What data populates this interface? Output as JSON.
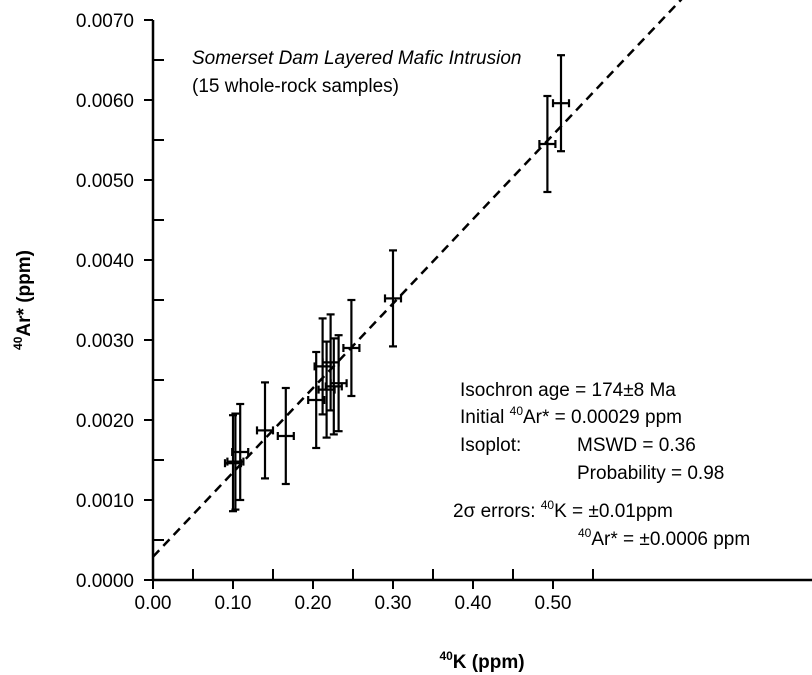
{
  "chart_data": {
    "type": "scatter",
    "title": "Somerset Dam Layered Mafic Intrusion",
    "subtitle": "(15 whole-rock samples)",
    "xlabel": {
      "sup": "40",
      "main": "K (ppm)"
    },
    "ylabel": {
      "sup": "40",
      "main": "Ar* (ppm)"
    },
    "xlim": [
      0,
      0.55
    ],
    "ylim": [
      0,
      0.007
    ],
    "x_ticks": [
      "0.00",
      "0.10",
      "0.20",
      "0.30",
      "0.40",
      "0.50"
    ],
    "x_tick_values": [
      0,
      0.1,
      0.2,
      0.3,
      0.4,
      0.5
    ],
    "y_ticks": [
      "0.0000",
      "0.0010",
      "0.0020",
      "0.0030",
      "0.0040",
      "0.0050",
      "0.0060",
      "0.0070"
    ],
    "y_tick_values": [
      0,
      0.001,
      0.002,
      0.003,
      0.004,
      0.005,
      0.006,
      0.007
    ],
    "x_error": 0.01,
    "y_error": 0.0006,
    "points": [
      {
        "x": 0.1,
        "y": 0.00146
      },
      {
        "x": 0.103,
        "y": 0.00148
      },
      {
        "x": 0.109,
        "y": 0.0016
      },
      {
        "x": 0.14,
        "y": 0.00187
      },
      {
        "x": 0.166,
        "y": 0.0018
      },
      {
        "x": 0.204,
        "y": 0.00225
      },
      {
        "x": 0.212,
        "y": 0.00267
      },
      {
        "x": 0.217,
        "y": 0.00238
      },
      {
        "x": 0.222,
        "y": 0.00272
      },
      {
        "x": 0.226,
        "y": 0.00242
      },
      {
        "x": 0.232,
        "y": 0.00246
      },
      {
        "x": 0.248,
        "y": 0.0029
      },
      {
        "x": 0.3,
        "y": 0.00352
      },
      {
        "x": 0.493,
        "y": 0.00545
      },
      {
        "x": 0.51,
        "y": 0.00596
      }
    ],
    "isochron": {
      "intercept": 0.00029,
      "slope": 0.01055,
      "style": "dashed"
    },
    "annotation": {
      "age": "Isochron age = 174±8 Ma",
      "initial_prefix": "Initial ",
      "initial_sup": "40",
      "initial_suffix": "Ar* = 0.00029 ppm",
      "isoplot_label": "Isoplot:",
      "mswd": "MSWD = 0.36",
      "probability": "Probability = 0.98",
      "errors_label": "2σ errors: ",
      "k_err_sup": "40",
      "k_err_suffix": "K = ±0.01ppm",
      "ar_err_sup": "40",
      "ar_err_suffix": "Ar* = ±0.0006 ppm"
    }
  }
}
